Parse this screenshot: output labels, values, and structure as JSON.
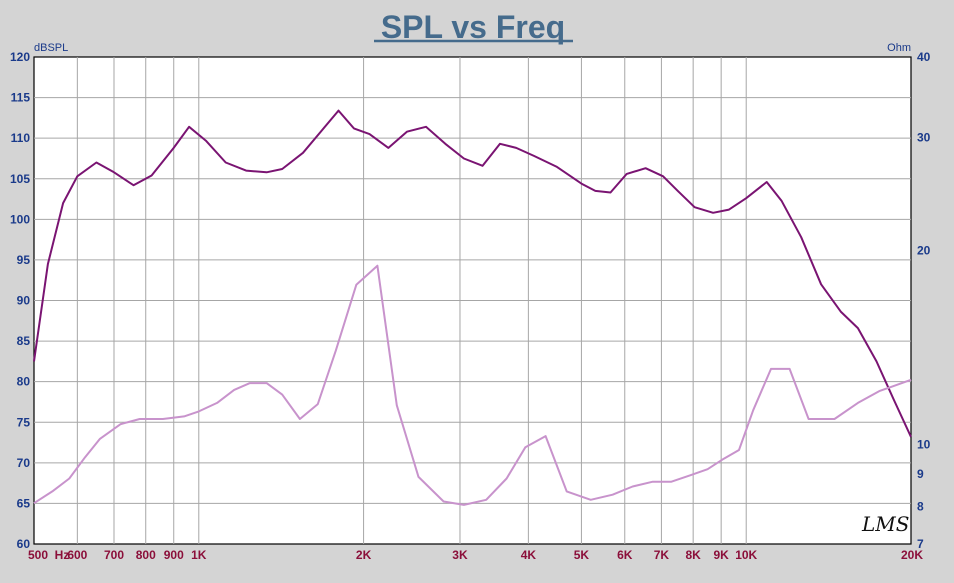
{
  "chart_data": {
    "type": "line",
    "title": "SPL vs Freq",
    "x_scale": "log",
    "xlim": [
      500,
      20000
    ],
    "left_axis": {
      "unit": "dBSPL",
      "ylim": [
        60,
        120
      ],
      "ticks": [
        60,
        65,
        70,
        75,
        80,
        85,
        90,
        95,
        100,
        105,
        110,
        115,
        120
      ]
    },
    "right_axis": {
      "unit": "Ohm",
      "scale": "log",
      "ylim": [
        7,
        40
      ],
      "ticks": [
        7,
        8,
        9,
        10,
        20,
        30,
        40
      ]
    },
    "x_ticks": [
      {
        "value": 500,
        "label": "500"
      },
      {
        "value": 600,
        "label": "600"
      },
      {
        "value": 700,
        "label": "700"
      },
      {
        "value": 800,
        "label": "800"
      },
      {
        "value": 900,
        "label": "900"
      },
      {
        "value": 1000,
        "label": "1K"
      },
      {
        "value": 2000,
        "label": "2K"
      },
      {
        "value": 3000,
        "label": "3K"
      },
      {
        "value": 4000,
        "label": "4K"
      },
      {
        "value": 5000,
        "label": "5K"
      },
      {
        "value": 6000,
        "label": "6K"
      },
      {
        "value": 7000,
        "label": "7K"
      },
      {
        "value": 8000,
        "label": "8K"
      },
      {
        "value": 9000,
        "label": "9K"
      },
      {
        "value": 10000,
        "label": "10K"
      },
      {
        "value": 20000,
        "label": "20K"
      }
    ],
    "x_unit": "Hz",
    "grid": true,
    "series": [
      {
        "axis": "left",
        "color": "#7a1472",
        "points": [
          [
            500,
            82.5
          ],
          [
            530,
            94.5
          ],
          [
            565,
            102
          ],
          [
            600,
            105.3
          ],
          [
            650,
            107
          ],
          [
            700,
            105.8
          ],
          [
            760,
            104.2
          ],
          [
            820,
            105.4
          ],
          [
            900,
            108.8
          ],
          [
            960,
            111.4
          ],
          [
            1030,
            109.7
          ],
          [
            1120,
            107
          ],
          [
            1220,
            106
          ],
          [
            1330,
            105.8
          ],
          [
            1420,
            106.2
          ],
          [
            1550,
            108.2
          ],
          [
            1680,
            111
          ],
          [
            1800,
            113.4
          ],
          [
            1920,
            111.2
          ],
          [
            2050,
            110.5
          ],
          [
            2220,
            108.8
          ],
          [
            2400,
            110.8
          ],
          [
            2600,
            111.4
          ],
          [
            2820,
            109.3
          ],
          [
            3050,
            107.5
          ],
          [
            3300,
            106.6
          ],
          [
            3550,
            109.3
          ],
          [
            3800,
            108.8
          ],
          [
            4100,
            107.8
          ],
          [
            4500,
            106.5
          ],
          [
            5000,
            104.4
          ],
          [
            5300,
            103.5
          ],
          [
            5650,
            103.3
          ],
          [
            6050,
            105.6
          ],
          [
            6550,
            106.3
          ],
          [
            7050,
            105.3
          ],
          [
            7500,
            103.5
          ],
          [
            8050,
            101.5
          ],
          [
            8700,
            100.8
          ],
          [
            9300,
            101.2
          ],
          [
            10000,
            102.6
          ],
          [
            10900,
            104.6
          ],
          [
            11600,
            102.3
          ],
          [
            12600,
            97.8
          ],
          [
            13700,
            92
          ],
          [
            14900,
            88.6
          ],
          [
            16000,
            86.6
          ],
          [
            17300,
            82.5
          ],
          [
            18600,
            77.8
          ],
          [
            20000,
            73.2
          ]
        ]
      },
      {
        "axis": "right",
        "color": "#c893cc",
        "points": [
          [
            500,
            8.1
          ],
          [
            540,
            8.45
          ],
          [
            580,
            8.85
          ],
          [
            620,
            9.55
          ],
          [
            660,
            10.2
          ],
          [
            720,
            10.75
          ],
          [
            780,
            10.95
          ],
          [
            860,
            10.95
          ],
          [
            940,
            11.05
          ],
          [
            1000,
            11.25
          ],
          [
            1080,
            11.6
          ],
          [
            1160,
            12.15
          ],
          [
            1240,
            12.45
          ],
          [
            1330,
            12.45
          ],
          [
            1420,
            11.95
          ],
          [
            1530,
            10.95
          ],
          [
            1650,
            11.55
          ],
          [
            1780,
            14
          ],
          [
            1940,
            17.7
          ],
          [
            2120,
            18.95
          ],
          [
            2300,
            11.5
          ],
          [
            2520,
            8.9
          ],
          [
            2800,
            8.15
          ],
          [
            3050,
            8.05
          ],
          [
            3350,
            8.2
          ],
          [
            3650,
            8.85
          ],
          [
            3950,
            9.9
          ],
          [
            4300,
            10.3
          ],
          [
            4700,
            8.45
          ],
          [
            5200,
            8.2
          ],
          [
            5700,
            8.35
          ],
          [
            6200,
            8.6
          ],
          [
            6750,
            8.75
          ],
          [
            7300,
            8.75
          ],
          [
            7900,
            8.95
          ],
          [
            8500,
            9.15
          ],
          [
            9100,
            9.5
          ],
          [
            9700,
            9.8
          ],
          [
            10300,
            11.3
          ],
          [
            11100,
            13.1
          ],
          [
            12000,
            13.1
          ],
          [
            13000,
            10.95
          ],
          [
            14500,
            10.95
          ],
          [
            16000,
            11.6
          ],
          [
            17500,
            12.1
          ],
          [
            20000,
            12.6
          ]
        ]
      }
    ]
  },
  "logo_text": "LMS",
  "colors": {
    "background": "#d4d4d4",
    "plot_background": "#ffffff",
    "grid": "#a6a6a6",
    "title": "#456b8c",
    "y_labels": "#1a3a8a",
    "x_labels": "#8b0f3a"
  }
}
